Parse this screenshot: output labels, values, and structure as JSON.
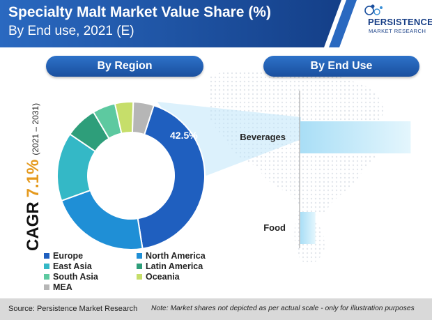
{
  "header": {
    "title_line1": "Specialty Malt Market Value Share (%)",
    "title_line2": "By End use, 2021 (E)"
  },
  "logo": {
    "line1": "PERSISTENCE",
    "line2": "MARKET RESEARCH"
  },
  "panels": {
    "region_label": "By Region",
    "enduse_label": "By End Use"
  },
  "cagr": {
    "word": "CAGR",
    "value": "7.1%",
    "period": "(2021 – 2031)"
  },
  "chart_data": [
    {
      "type": "pie",
      "title": "By Region",
      "categories": [
        "Europe",
        "North America",
        "East Asia",
        "Latin America",
        "South Asia",
        "Oceania",
        "MEA"
      ],
      "values": [
        42.5,
        22,
        15,
        7,
        5,
        4,
        4.5
      ],
      "data_labels": [
        "42.5%"
      ],
      "colors": [
        "#1f5fbf",
        "#1f8fd6",
        "#34b8c6",
        "#2e9e7a",
        "#5dc9a0",
        "#c6de6a",
        "#b6b6b6"
      ],
      "donut": true,
      "legend_position": "bottom"
    },
    {
      "type": "bar",
      "title": "By End Use",
      "orientation": "horizontal",
      "categories": [
        "Beverages",
        "Food"
      ],
      "values": [
        88,
        12
      ],
      "xlim": [
        0,
        100
      ],
      "grid": false
    }
  ],
  "footer": {
    "source": "Source: Persistence Market Research",
    "note": "Note: Market shares not depicted as per actual scale - only for illustration purposes"
  },
  "colors": {
    "header_blue": "#1a4f9e",
    "accent_orange": "#e59a1e",
    "bar_light_blue": "#c8ecfb"
  },
  "icons": {
    "logo": "persistence-logo-icon",
    "background": "world-map-icon"
  }
}
